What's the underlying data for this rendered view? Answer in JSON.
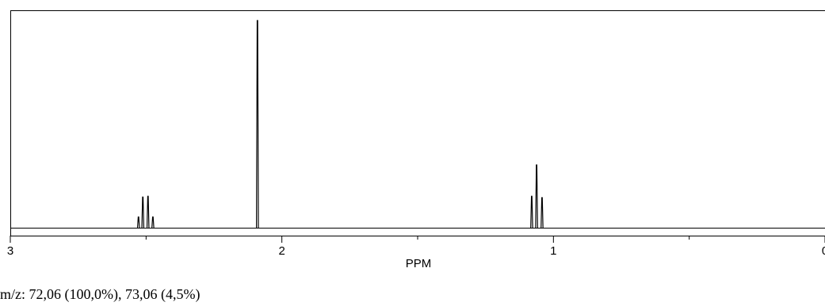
{
  "chart_data": {
    "type": "line",
    "xlabel": "PPM",
    "ylabel": "",
    "title": "",
    "xlim": [
      3,
      0
    ],
    "x_reversed": true,
    "x_ticks_major": [
      3,
      2,
      1,
      0
    ],
    "x_tick_labels": [
      "3",
      "2",
      "1",
      "0"
    ],
    "x_ticks_minor": [
      2.5,
      1.5,
      0.5
    ],
    "ylim": [
      0,
      1
    ],
    "grid": false,
    "peaks": [
      {
        "ppm": 2.528,
        "height": 0.052
      },
      {
        "ppm": 2.512,
        "height": 0.148
      },
      {
        "ppm": 2.493,
        "height": 0.152
      },
      {
        "ppm": 2.475,
        "height": 0.052
      },
      {
        "ppm": 2.09,
        "height": 1.0
      },
      {
        "ppm": 1.08,
        "height": 0.152
      },
      {
        "ppm": 1.062,
        "height": 0.303
      },
      {
        "ppm": 1.042,
        "height": 0.145
      }
    ]
  },
  "caption": "m/z: 72,06 (100,0%), 73,06 (4,5%)"
}
